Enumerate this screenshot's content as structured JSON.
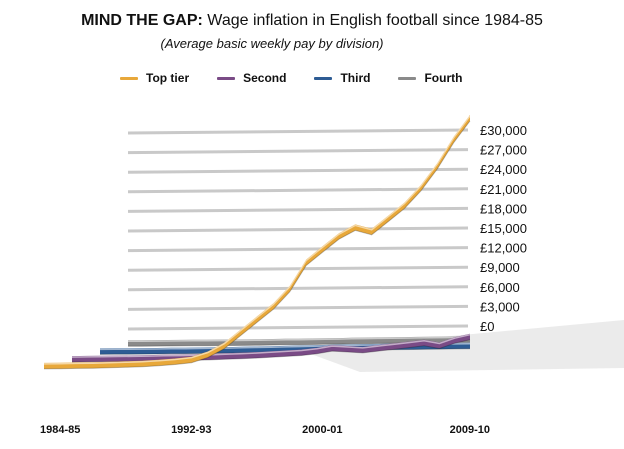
{
  "chart_data": {
    "type": "line",
    "title_lead": "MIND THE GAP:",
    "title_rest": " Wage inflation in English football since 1984-85",
    "subtitle": "(Average basic weekly pay by division)",
    "y_ticks": [
      "£30,000",
      "£27,000",
      "£24,000",
      "£21,000",
      "£18,000",
      "£15,000",
      "£12,000",
      "£9,000",
      "£6,000",
      "£3,000",
      "£0"
    ],
    "ylim": [
      0,
      30000
    ],
    "x_tick_labels": [
      {
        "label": "1984-85",
        "season_index": 0
      },
      {
        "label": "1992-93",
        "season_index": 8
      },
      {
        "label": "2000-01",
        "season_index": 16
      },
      {
        "label": "2009-10",
        "season_index": 25
      }
    ],
    "season_count": 27,
    "legend_position": "top",
    "grid": true,
    "series": [
      {
        "name": "Fourth",
        "color": "#8a8a8a",
        "depth": 3,
        "values": [
          200,
          210,
          220,
          230,
          240,
          250,
          260,
          270,
          280,
          300,
          320,
          340,
          360,
          380,
          400,
          420,
          450,
          480,
          500,
          520,
          540,
          560,
          580,
          600,
          620,
          640,
          660
        ]
      },
      {
        "name": "Third",
        "color": "#2e5c94",
        "depth": 2,
        "values": [
          300,
          310,
          320,
          330,
          340,
          360,
          380,
          400,
          420,
          450,
          480,
          510,
          540,
          580,
          620,
          660,
          700,
          740,
          780,
          800,
          820,
          840,
          860,
          880,
          900,
          920,
          940
        ]
      },
      {
        "name": "Second",
        "color": "#7a4b86",
        "depth": 1,
        "values": [
          450,
          470,
          490,
          510,
          530,
          560,
          590,
          620,
          650,
          700,
          760,
          820,
          900,
          1000,
          1100,
          1200,
          1400,
          1700,
          1600,
          1500,
          1700,
          1900,
          2100,
          2300,
          2000,
          2600,
          3000
        ]
      },
      {
        "name": "Top tier",
        "color": "#e8a83a",
        "depth": 0,
        "values": [
          700,
          720,
          750,
          780,
          820,
          880,
          950,
          1050,
          1200,
          1400,
          2000,
          3000,
          4500,
          6000,
          7500,
          9500,
          12500,
          14000,
          15500,
          16500,
          16000,
          17500,
          19000,
          21000,
          23500,
          26500,
          29000
        ]
      }
    ]
  }
}
